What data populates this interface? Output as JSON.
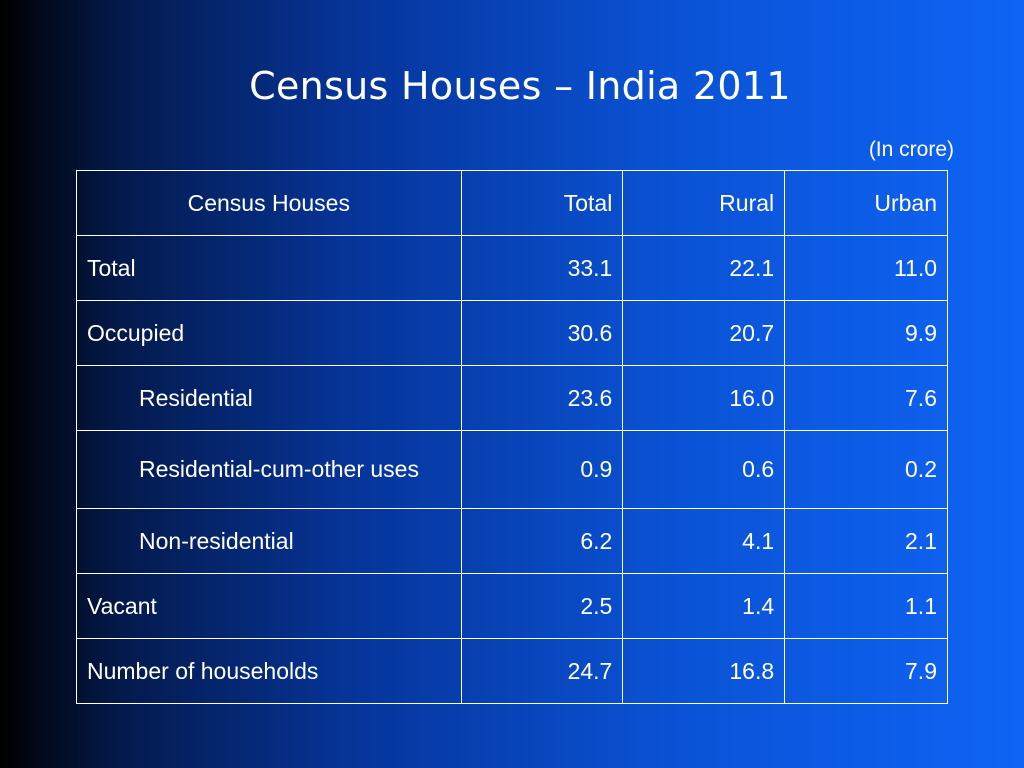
{
  "slide": {
    "title": "Census Houses – India 2011",
    "unit_note": "(In crore)"
  },
  "table": {
    "headers": [
      "Census Houses",
      "Total",
      "Rural",
      "Urban"
    ],
    "rows": [
      {
        "label": "Total",
        "total": "33.1",
        "rural": "22.1",
        "urban": "11.0"
      },
      {
        "label": "Occupied",
        "total": "30.6",
        "rural": "20.7",
        "urban": "9.9"
      },
      {
        "label": "Residential",
        "total": "23.6",
        "rural": "16.0",
        "urban": "7.6"
      },
      {
        "label": "Residential-cum-other uses",
        "total": "0.9",
        "rural": "0.6",
        "urban": "0.2"
      },
      {
        "label": "Non-residential",
        "total": "6.2",
        "rural": "4.1",
        "urban": "2.1"
      },
      {
        "label": "Vacant",
        "total": "2.5",
        "rural": "1.4",
        "urban": "1.1"
      },
      {
        "label": "Number of households",
        "total": "24.7",
        "rural": "16.8",
        "urban": "7.9"
      }
    ]
  },
  "colors": {
    "background_left": "#000000",
    "background_right": "#0f64f5",
    "text": "#ffffff",
    "border": "#ffffff"
  }
}
